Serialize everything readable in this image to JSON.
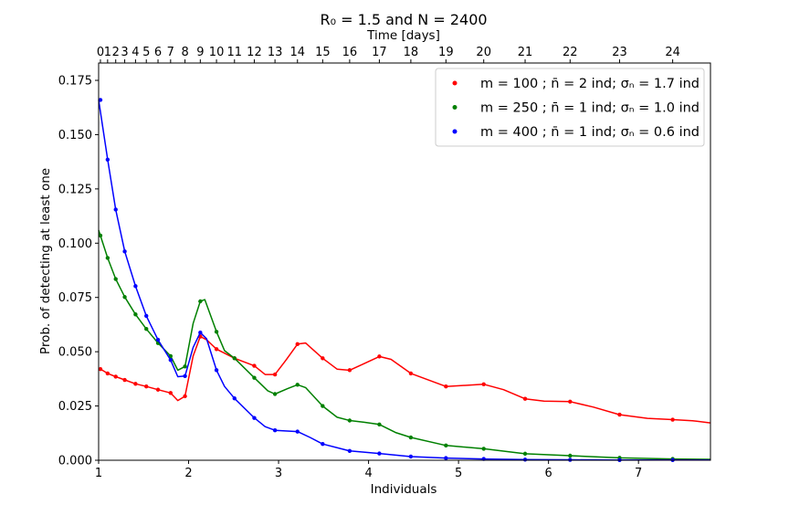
{
  "chart_data": {
    "type": "line",
    "title": "R₀ = 1.5 and N = 2400",
    "xlabel": "Individuals",
    "ylabel": "Prob. of detecting at least one",
    "top_xlabel": "Time [days]",
    "xlim": [
      1,
      7.8
    ],
    "ylim": [
      0,
      0.183
    ],
    "grid": false,
    "legend_position": "top-right",
    "x_ticks": [
      "1",
      "2",
      "3",
      "4",
      "5",
      "6",
      "7"
    ],
    "y_ticks": [
      "0.000",
      "0.025",
      "0.050",
      "0.075",
      "0.100",
      "0.125",
      "0.150",
      "0.175"
    ],
    "top_ticks": [
      {
        "label": "0",
        "x": 1.02
      },
      {
        "label": "1",
        "x": 1.1
      },
      {
        "label": "2",
        "x": 1.19
      },
      {
        "label": "3",
        "x": 1.29
      },
      {
        "label": "4",
        "x": 1.41
      },
      {
        "label": "5",
        "x": 1.53
      },
      {
        "label": "6",
        "x": 1.66
      },
      {
        "label": "7",
        "x": 1.8
      },
      {
        "label": "8",
        "x": 1.96
      },
      {
        "label": "9",
        "x": 2.13
      },
      {
        "label": "10",
        "x": 2.31
      },
      {
        "label": "11",
        "x": 2.51
      },
      {
        "label": "12",
        "x": 2.73
      },
      {
        "label": "13",
        "x": 2.96
      },
      {
        "label": "14",
        "x": 3.21
      },
      {
        "label": "15",
        "x": 3.49
      },
      {
        "label": "16",
        "x": 3.79
      },
      {
        "label": "17",
        "x": 4.12
      },
      {
        "label": "18",
        "x": 4.47
      },
      {
        "label": "19",
        "x": 4.86
      },
      {
        "label": "20",
        "x": 5.28
      },
      {
        "label": "21",
        "x": 5.74
      },
      {
        "label": "22",
        "x": 6.24
      },
      {
        "label": "23",
        "x": 6.79
      },
      {
        "label": "24",
        "x": 7.38
      }
    ],
    "series": [
      {
        "name": "m = 100 ; n̄ = 2 ind; σₙ = 1.7 ind",
        "color": "#ff0000",
        "points": [
          [
            1.02,
            0.042
          ],
          [
            1.1,
            0.04
          ],
          [
            1.19,
            0.0385
          ],
          [
            1.29,
            0.037
          ],
          [
            1.41,
            0.0352
          ],
          [
            1.53,
            0.034
          ],
          [
            1.66,
            0.0325
          ],
          [
            1.8,
            0.031
          ],
          [
            1.96,
            0.0295
          ],
          [
            2.13,
            0.057
          ],
          [
            2.31,
            0.0512
          ],
          [
            2.51,
            0.047
          ],
          [
            2.73,
            0.0435
          ],
          [
            2.96,
            0.0395
          ],
          [
            3.21,
            0.0535
          ],
          [
            3.49,
            0.047
          ],
          [
            3.79,
            0.0415
          ],
          [
            4.12,
            0.0478
          ],
          [
            4.47,
            0.04
          ],
          [
            4.86,
            0.034
          ],
          [
            5.28,
            0.035
          ],
          [
            5.74,
            0.0283
          ],
          [
            6.24,
            0.027
          ],
          [
            6.79,
            0.021
          ],
          [
            7.38,
            0.0187
          ]
        ],
        "line": [
          [
            1.0,
            0.0425
          ],
          [
            1.1,
            0.04
          ],
          [
            1.19,
            0.0385
          ],
          [
            1.29,
            0.037
          ],
          [
            1.41,
            0.0352
          ],
          [
            1.53,
            0.034
          ],
          [
            1.66,
            0.0325
          ],
          [
            1.8,
            0.031
          ],
          [
            1.88,
            0.0275
          ],
          [
            1.96,
            0.0295
          ],
          [
            2.05,
            0.048
          ],
          [
            2.13,
            0.057
          ],
          [
            2.2,
            0.0555
          ],
          [
            2.31,
            0.0512
          ],
          [
            2.51,
            0.047
          ],
          [
            2.73,
            0.0435
          ],
          [
            2.85,
            0.0395
          ],
          [
            2.96,
            0.0395
          ],
          [
            3.08,
            0.046
          ],
          [
            3.21,
            0.0535
          ],
          [
            3.3,
            0.054
          ],
          [
            3.49,
            0.047
          ],
          [
            3.65,
            0.042
          ],
          [
            3.79,
            0.0415
          ],
          [
            3.95,
            0.0445
          ],
          [
            4.12,
            0.0478
          ],
          [
            4.25,
            0.0465
          ],
          [
            4.47,
            0.04
          ],
          [
            4.86,
            0.034
          ],
          [
            5.08,
            0.0345
          ],
          [
            5.28,
            0.035
          ],
          [
            5.5,
            0.0325
          ],
          [
            5.74,
            0.0283
          ],
          [
            5.95,
            0.0272
          ],
          [
            6.24,
            0.027
          ],
          [
            6.5,
            0.0245
          ],
          [
            6.79,
            0.021
          ],
          [
            7.1,
            0.0193
          ],
          [
            7.38,
            0.0187
          ],
          [
            7.6,
            0.0182
          ],
          [
            7.8,
            0.0172
          ]
        ]
      },
      {
        "name": "m = 250 ; n̄ = 1 ind; σₙ = 1.0 ind",
        "color": "#008000",
        "points": [
          [
            1.02,
            0.1035
          ],
          [
            1.1,
            0.0932
          ],
          [
            1.19,
            0.0835
          ],
          [
            1.29,
            0.0752
          ],
          [
            1.41,
            0.0672
          ],
          [
            1.53,
            0.0605
          ],
          [
            1.66,
            0.054
          ],
          [
            1.8,
            0.048
          ],
          [
            1.96,
            0.0432
          ],
          [
            2.13,
            0.0732
          ],
          [
            2.31,
            0.0592
          ],
          [
            2.51,
            0.047
          ],
          [
            2.73,
            0.038
          ],
          [
            2.96,
            0.0305
          ],
          [
            3.21,
            0.0348
          ],
          [
            3.49,
            0.025
          ],
          [
            3.79,
            0.0183
          ],
          [
            4.12,
            0.0165
          ],
          [
            4.47,
            0.0105
          ],
          [
            4.86,
            0.0068
          ],
          [
            5.28,
            0.0053
          ],
          [
            5.74,
            0.003
          ],
          [
            6.24,
            0.0021
          ],
          [
            6.79,
            0.0011
          ],
          [
            7.38,
            0.0006
          ]
        ],
        "line": [
          [
            1.0,
            0.106
          ],
          [
            1.1,
            0.0932
          ],
          [
            1.19,
            0.0835
          ],
          [
            1.29,
            0.0752
          ],
          [
            1.41,
            0.0672
          ],
          [
            1.53,
            0.0605
          ],
          [
            1.66,
            0.054
          ],
          [
            1.8,
            0.048
          ],
          [
            1.88,
            0.0415
          ],
          [
            1.96,
            0.0432
          ],
          [
            2.05,
            0.063
          ],
          [
            2.13,
            0.0732
          ],
          [
            2.18,
            0.074
          ],
          [
            2.31,
            0.0592
          ],
          [
            2.4,
            0.0505
          ],
          [
            2.51,
            0.047
          ],
          [
            2.73,
            0.038
          ],
          [
            2.88,
            0.032
          ],
          [
            2.96,
            0.0305
          ],
          [
            3.1,
            0.033
          ],
          [
            3.21,
            0.0348
          ],
          [
            3.3,
            0.0335
          ],
          [
            3.49,
            0.025
          ],
          [
            3.65,
            0.0198
          ],
          [
            3.79,
            0.0183
          ],
          [
            3.95,
            0.0175
          ],
          [
            4.12,
            0.0165
          ],
          [
            4.3,
            0.0128
          ],
          [
            4.47,
            0.0105
          ],
          [
            4.86,
            0.0068
          ],
          [
            5.28,
            0.0053
          ],
          [
            5.74,
            0.003
          ],
          [
            6.24,
            0.0021
          ],
          [
            6.79,
            0.0011
          ],
          [
            7.38,
            0.0006
          ],
          [
            7.8,
            0.0004
          ]
        ]
      },
      {
        "name": "m = 400 ; n̄ = 1 ind; σₙ = 0.6 ind",
        "color": "#0000ff",
        "points": [
          [
            1.02,
            0.166
          ],
          [
            1.1,
            0.1385
          ],
          [
            1.19,
            0.1155
          ],
          [
            1.29,
            0.0962
          ],
          [
            1.41,
            0.0802
          ],
          [
            1.53,
            0.0665
          ],
          [
            1.66,
            0.0555
          ],
          [
            1.8,
            0.0462
          ],
          [
            1.96,
            0.0388
          ],
          [
            2.13,
            0.0588
          ],
          [
            2.31,
            0.0415
          ],
          [
            2.51,
            0.0285
          ],
          [
            2.73,
            0.0195
          ],
          [
            2.96,
            0.0138
          ],
          [
            3.21,
            0.0132
          ],
          [
            3.49,
            0.0075
          ],
          [
            3.79,
            0.0043
          ],
          [
            4.12,
            0.0031
          ],
          [
            4.47,
            0.0017
          ],
          [
            4.86,
            0.001
          ],
          [
            5.28,
            0.0006
          ],
          [
            5.74,
            0.0003
          ],
          [
            6.24,
            0.0002
          ],
          [
            6.79,
            0.0001
          ],
          [
            7.38,
            0.0001
          ]
        ],
        "line": [
          [
            1.0,
            0.166
          ],
          [
            1.1,
            0.1385
          ],
          [
            1.19,
            0.1155
          ],
          [
            1.29,
            0.0962
          ],
          [
            1.41,
            0.0802
          ],
          [
            1.53,
            0.0665
          ],
          [
            1.66,
            0.0555
          ],
          [
            1.8,
            0.0462
          ],
          [
            1.88,
            0.0385
          ],
          [
            1.96,
            0.0388
          ],
          [
            2.05,
            0.052
          ],
          [
            2.13,
            0.0588
          ],
          [
            2.2,
            0.056
          ],
          [
            2.31,
            0.0415
          ],
          [
            2.4,
            0.034
          ],
          [
            2.51,
            0.0285
          ],
          [
            2.73,
            0.0195
          ],
          [
            2.85,
            0.0155
          ],
          [
            2.96,
            0.0138
          ],
          [
            3.21,
            0.0132
          ],
          [
            3.35,
            0.0105
          ],
          [
            3.49,
            0.0075
          ],
          [
            3.79,
            0.0043
          ],
          [
            4.12,
            0.0031
          ],
          [
            4.47,
            0.0017
          ],
          [
            4.86,
            0.001
          ],
          [
            5.28,
            0.0006
          ],
          [
            5.74,
            0.0003
          ],
          [
            6.24,
            0.0002
          ],
          [
            6.79,
            0.0001
          ],
          [
            7.38,
            0.0001
          ],
          [
            7.8,
            0.0001
          ]
        ]
      }
    ]
  }
}
